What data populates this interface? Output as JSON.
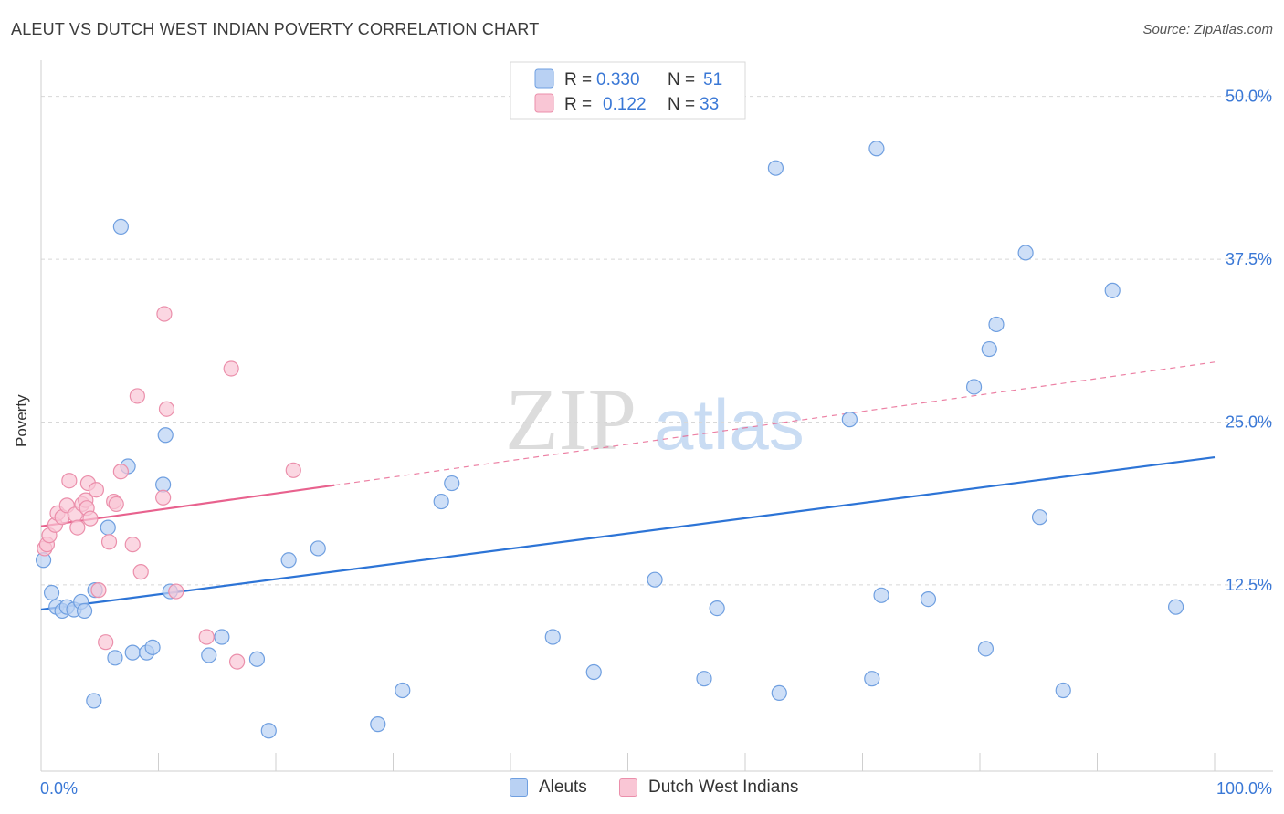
{
  "header": {
    "title": "ALEUT VS DUTCH WEST INDIAN POVERTY CORRELATION CHART",
    "source": "Source: ZipAtlas.com"
  },
  "watermark": {
    "zip": "ZIP",
    "atlas": "atlas"
  },
  "legend": {
    "rows": [
      {
        "r_label": "R =",
        "r_value": "0.330",
        "n_label": "N =",
        "n_value": "51"
      },
      {
        "r_label": "R =",
        "r_value": "0.122",
        "n_label": "N =",
        "n_value": "33"
      }
    ]
  },
  "bottom_legend": {
    "series_a": "Aleuts",
    "series_b": "Dutch West Indians"
  },
  "colors": {
    "blue_fill": "#b9d1f3",
    "blue_stroke": "#6f9fe0",
    "blue_line": "#2d74d6",
    "pink_fill": "#f9c6d5",
    "pink_stroke": "#eb8fab",
    "pink_line": "#e8628e",
    "axis_text": "#3a78d6"
  },
  "chart_data": {
    "type": "scatter",
    "title": "ALEUT VS DUTCH WEST INDIAN POVERTY CORRELATION CHART",
    "xlabel": "",
    "ylabel": "Poverty",
    "xlim": [
      0,
      100
    ],
    "ylim": [
      -1.8,
      52.5
    ],
    "x_tick_labels": [
      "0.0%",
      "100.0%"
    ],
    "y_ticks": [
      12.5,
      25.0,
      37.5,
      50.0
    ],
    "y_tick_labels": [
      "12.5%",
      "25.0%",
      "37.5%",
      "50.0%"
    ],
    "x_minor_ticks": [
      0,
      10,
      20,
      30,
      40,
      50,
      60,
      70,
      80,
      90,
      100
    ],
    "grid": true,
    "series": [
      {
        "name": "Aleuts",
        "r": 0.33,
        "n": 51,
        "trend": {
          "x0": 0,
          "y0": 10.6,
          "x1": 100,
          "y1": 22.3,
          "solid_to": 100
        },
        "points": [
          [
            0.2,
            14.4
          ],
          [
            0.9,
            11.9
          ],
          [
            1.3,
            10.8
          ],
          [
            1.8,
            10.5
          ],
          [
            2.2,
            10.8
          ],
          [
            2.8,
            10.6
          ],
          [
            3.4,
            11.2
          ],
          [
            3.7,
            10.5
          ],
          [
            4.5,
            3.6
          ],
          [
            4.6,
            12.1
          ],
          [
            5.7,
            16.9
          ],
          [
            6.3,
            6.9
          ],
          [
            6.8,
            40.0
          ],
          [
            7.4,
            21.6
          ],
          [
            7.8,
            7.3
          ],
          [
            9.0,
            7.3
          ],
          [
            9.5,
            7.7
          ],
          [
            10.4,
            20.2
          ],
          [
            10.6,
            24.0
          ],
          [
            11.0,
            12.0
          ],
          [
            14.3,
            7.1
          ],
          [
            15.4,
            8.5
          ],
          [
            18.4,
            6.8
          ],
          [
            19.4,
            1.3
          ],
          [
            21.1,
            14.4
          ],
          [
            23.6,
            15.3
          ],
          [
            28.7,
            1.8
          ],
          [
            30.8,
            4.4
          ],
          [
            34.1,
            18.9
          ],
          [
            35.0,
            20.3
          ],
          [
            43.6,
            8.5
          ],
          [
            47.1,
            5.8
          ],
          [
            52.3,
            12.9
          ],
          [
            56.5,
            5.3
          ],
          [
            57.6,
            10.7
          ],
          [
            62.6,
            44.5
          ],
          [
            62.9,
            4.2
          ],
          [
            68.9,
            25.2
          ],
          [
            70.8,
            5.3
          ],
          [
            71.2,
            46.0
          ],
          [
            71.6,
            11.7
          ],
          [
            75.6,
            11.4
          ],
          [
            79.5,
            27.7
          ],
          [
            80.5,
            7.6
          ],
          [
            80.8,
            30.6
          ],
          [
            81.4,
            32.5
          ],
          [
            83.9,
            38.0
          ],
          [
            85.1,
            17.7
          ],
          [
            87.1,
            4.4
          ],
          [
            91.3,
            35.1
          ],
          [
            96.7,
            10.8
          ]
        ]
      },
      {
        "name": "Dutch West Indians",
        "r": 0.122,
        "n": 33,
        "trend": {
          "x0": 0,
          "y0": 17.0,
          "x1": 100,
          "y1": 29.6,
          "solid_to": 25
        },
        "points": [
          [
            0.3,
            15.3
          ],
          [
            0.5,
            15.6
          ],
          [
            0.7,
            16.3
          ],
          [
            1.2,
            17.1
          ],
          [
            1.4,
            18.0
          ],
          [
            1.8,
            17.7
          ],
          [
            2.2,
            18.6
          ],
          [
            2.4,
            20.5
          ],
          [
            2.9,
            17.9
          ],
          [
            3.1,
            16.9
          ],
          [
            3.5,
            18.7
          ],
          [
            3.8,
            19.0
          ],
          [
            3.9,
            18.4
          ],
          [
            4.0,
            20.3
          ],
          [
            4.2,
            17.6
          ],
          [
            4.7,
            19.8
          ],
          [
            4.9,
            12.1
          ],
          [
            5.5,
            8.1
          ],
          [
            5.8,
            15.8
          ],
          [
            6.2,
            18.9
          ],
          [
            6.4,
            18.7
          ],
          [
            6.8,
            21.2
          ],
          [
            7.8,
            15.6
          ],
          [
            8.2,
            27.0
          ],
          [
            8.5,
            13.5
          ],
          [
            10.4,
            19.2
          ],
          [
            10.5,
            33.3
          ],
          [
            10.7,
            26.0
          ],
          [
            11.5,
            12.0
          ],
          [
            14.1,
            8.5
          ],
          [
            16.2,
            29.1
          ],
          [
            16.7,
            6.6
          ],
          [
            21.5,
            21.3
          ]
        ]
      }
    ]
  }
}
